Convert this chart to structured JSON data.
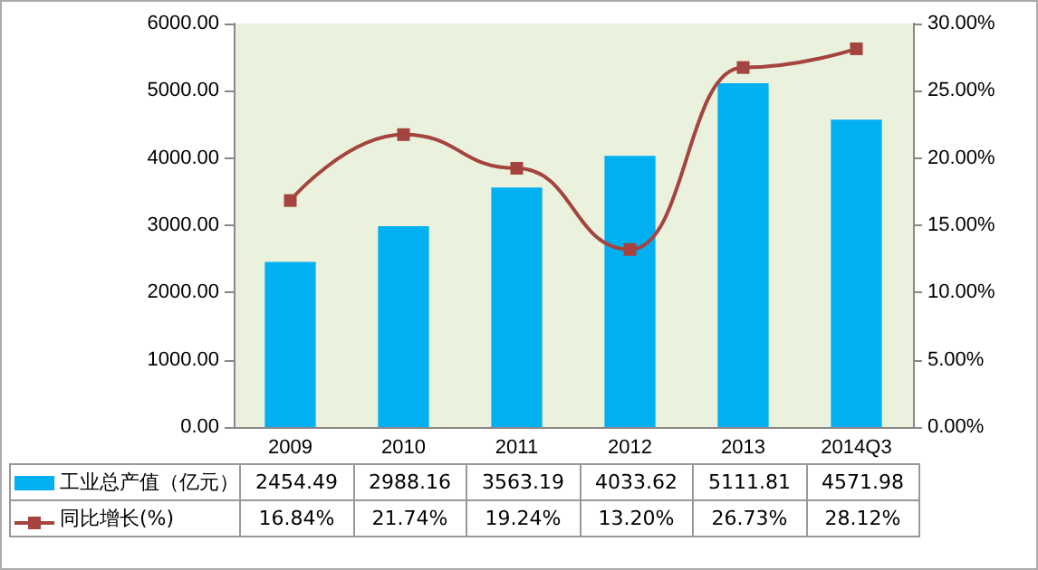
{
  "chart_data": {
    "type": "bar",
    "categories": [
      "2009",
      "2010",
      "2011",
      "2012",
      "2013",
      "2014Q3"
    ],
    "series": [
      {
        "name": "工业总产值（亿元）",
        "color": "#00b0f0",
        "values": [
          2454.49,
          2988.16,
          3563.19,
          4033.62,
          5111.81,
          4571.98
        ],
        "value_labels": [
          "2454.49",
          "2988.16",
          "3563.19",
          "4033.62",
          "5111.81",
          "4571.98"
        ]
      },
      {
        "name": "同比增长(%)",
        "type": "line",
        "axis": "y2",
        "color": "#a5433e",
        "marker": "square",
        "values": [
          16.84,
          21.74,
          19.24,
          13.2,
          26.73,
          28.12
        ],
        "value_labels": [
          "16.84%",
          "21.74%",
          "19.24%",
          "13.20%",
          "26.73%",
          "28.12%"
        ]
      }
    ],
    "ylim": [
      0,
      6000
    ],
    "yticks": [
      {
        "value": 0,
        "label": "0.00"
      },
      {
        "value": 1000,
        "label": "1000.00"
      },
      {
        "value": 2000,
        "label": "2000.00"
      },
      {
        "value": 3000,
        "label": "3000.00"
      },
      {
        "value": 4000,
        "label": "4000.00"
      },
      {
        "value": 5000,
        "label": "5000.00"
      },
      {
        "value": 6000,
        "label": "6000.00"
      }
    ],
    "y2lim": [
      0,
      30
    ],
    "y2ticks": [
      {
        "value": 0,
        "label": "0.00%"
      },
      {
        "value": 5,
        "label": "5.00%"
      },
      {
        "value": 10,
        "label": "10.00%"
      },
      {
        "value": 15,
        "label": "15.00%"
      },
      {
        "value": 20,
        "label": "20.00%"
      },
      {
        "value": 25,
        "label": "25.00%"
      },
      {
        "value": 30,
        "label": "30.00%"
      }
    ],
    "grid": false,
    "legend": "bottom left"
  }
}
